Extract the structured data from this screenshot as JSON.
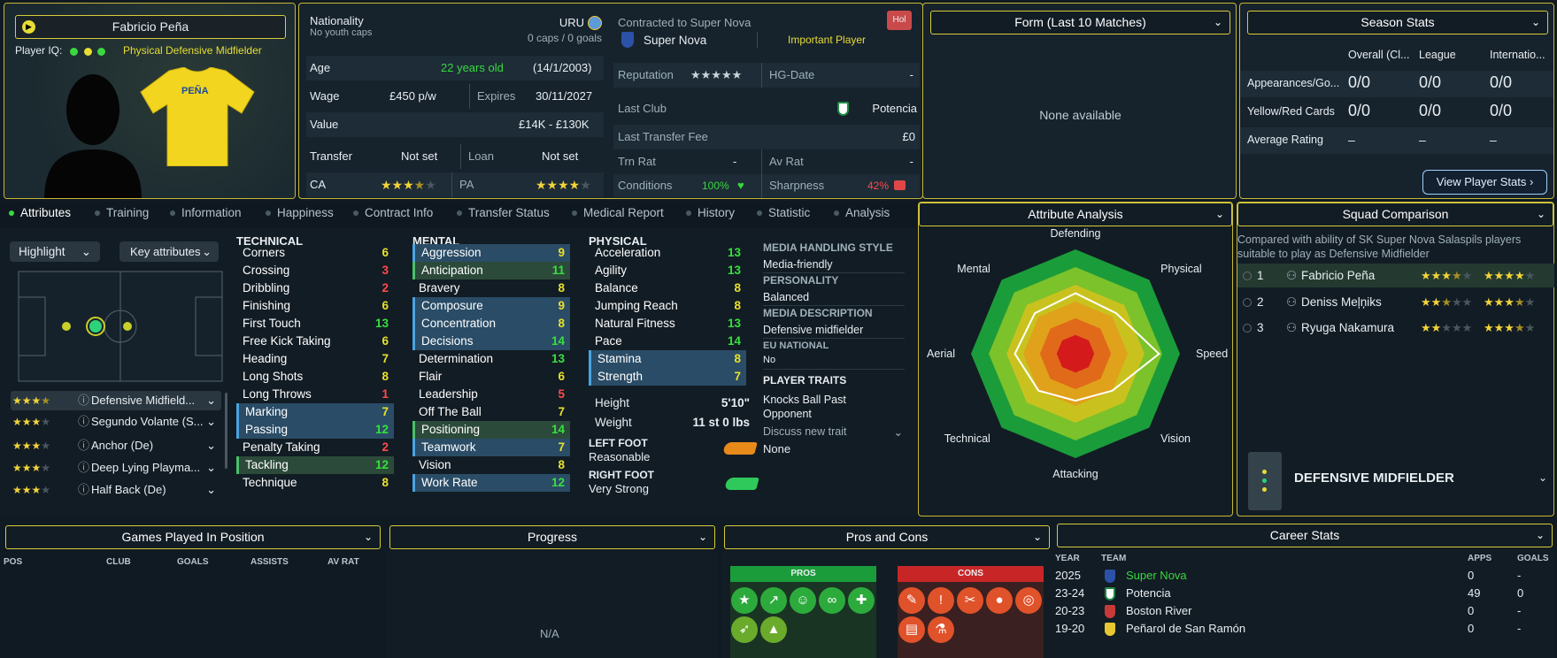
{
  "player": {
    "name": "Fabricio Peña",
    "iq_label": "Player IQ:",
    "position": "Physical Defensive Midfielder",
    "shirt_name": "PEÑA"
  },
  "info": {
    "nationality_label": "Nationality",
    "nationality": "URU",
    "youth_caps": "No youth caps",
    "caps_goals": "0 caps / 0 goals",
    "age_label": "Age",
    "age": "22 years old",
    "dob": "(14/1/2003)",
    "wage_label": "Wage",
    "wage": "£450 p/w",
    "expires_label": "Expires",
    "expires": "30/11/2027",
    "value_label": "Value",
    "value": "£14K - £130K",
    "transfer_label": "Transfer",
    "transfer": "Not set",
    "loan_label": "Loan",
    "loan": "Not set",
    "ca_label": "CA",
    "pa_label": "PA",
    "contract_label": "Contracted to Super Nova",
    "club": "Super Nova",
    "status": "Important Player",
    "hol": "Hol",
    "reputation_label": "Reputation",
    "hg_label": "HG-Date",
    "hg": "-",
    "last_club_label": "Last Club",
    "last_club": "Potencia",
    "fee_label": "Last Transfer Fee",
    "fee": "£0",
    "trn_label": "Trn Rat",
    "trn": "-",
    "av_label": "Av Rat",
    "av": "-",
    "cond_label": "Conditions",
    "cond": "100%",
    "sharp_label": "Sharpness",
    "sharp": "42%"
  },
  "form": {
    "title": "Form (Last 10 Matches)",
    "empty": "None available"
  },
  "season": {
    "title": "Season Stats",
    "cols": [
      "Overall (Cl...",
      "League",
      "Internatio..."
    ],
    "rows": [
      {
        "label": "Appearances/Go...",
        "vals": [
          "0/0",
          "0/0",
          "0/0"
        ]
      },
      {
        "label": "Yellow/Red Cards",
        "vals": [
          "0/0",
          "0/0",
          "0/0"
        ]
      },
      {
        "label": "Average Rating",
        "vals": [
          "–",
          "–",
          "–"
        ]
      }
    ],
    "button": "View Player Stats"
  },
  "tabs": [
    "Attributes",
    "Training",
    "Information",
    "Happiness",
    "Contract Info",
    "Transfer Status",
    "Medical Report",
    "History",
    "Statistic",
    "Analysis"
  ],
  "controls": {
    "highlight": "Highlight",
    "key": "Key attributes"
  },
  "positions": [
    {
      "name": "Defensive Midfield...",
      "stars": 3.5
    },
    {
      "name": "Segundo Volante (S...",
      "stars": 3
    },
    {
      "name": "Anchor (De)",
      "stars": 3
    },
    {
      "name": "Deep Lying Playma...",
      "stars": 3
    },
    {
      "name": "Half Back (De)",
      "stars": 3
    }
  ],
  "technical": {
    "title": "TECHNICAL",
    "items": [
      {
        "n": "Corners",
        "v": "6",
        "c": "y"
      },
      {
        "n": "Crossing",
        "v": "3",
        "c": "r"
      },
      {
        "n": "Dribbling",
        "v": "2",
        "c": "r"
      },
      {
        "n": "Finishing",
        "v": "6",
        "c": "y"
      },
      {
        "n": "First Touch",
        "v": "13",
        "c": "g"
      },
      {
        "n": "Free Kick Taking",
        "v": "6",
        "c": "y"
      },
      {
        "n": "Heading",
        "v": "7",
        "c": "y"
      },
      {
        "n": "Long Shots",
        "v": "8",
        "c": "y"
      },
      {
        "n": "Long Throws",
        "v": "1",
        "c": "r"
      },
      {
        "n": "Marking",
        "v": "7",
        "c": "y",
        "h": 1
      },
      {
        "n": "Passing",
        "v": "12",
        "c": "g",
        "h": 1
      },
      {
        "n": "Penalty Taking",
        "v": "2",
        "c": "r"
      },
      {
        "n": "Tackling",
        "v": "12",
        "c": "g",
        "h": 2
      },
      {
        "n": "Technique",
        "v": "8",
        "c": "y"
      }
    ]
  },
  "mental": {
    "title": "MENTAL",
    "items": [
      {
        "n": "Aggression",
        "v": "9",
        "c": "y",
        "h": 1
      },
      {
        "n": "Anticipation",
        "v": "11",
        "c": "g",
        "h": 2
      },
      {
        "n": "Bravery",
        "v": "8",
        "c": "y"
      },
      {
        "n": "Composure",
        "v": "9",
        "c": "y",
        "h": 1
      },
      {
        "n": "Concentration",
        "v": "8",
        "c": "y",
        "h": 1
      },
      {
        "n": "Decisions",
        "v": "14",
        "c": "g",
        "h": 1
      },
      {
        "n": "Determination",
        "v": "13",
        "c": "g"
      },
      {
        "n": "Flair",
        "v": "6",
        "c": "y"
      },
      {
        "n": "Leadership",
        "v": "5",
        "c": "r"
      },
      {
        "n": "Off The Ball",
        "v": "7",
        "c": "y"
      },
      {
        "n": "Positioning",
        "v": "14",
        "c": "g",
        "h": 2
      },
      {
        "n": "Teamwork",
        "v": "7",
        "c": "y",
        "h": 1
      },
      {
        "n": "Vision",
        "v": "8",
        "c": "y"
      },
      {
        "n": "Work Rate",
        "v": "12",
        "c": "g",
        "h": 1
      }
    ]
  },
  "physical": {
    "title": "PHYSICAL",
    "items": [
      {
        "n": "Acceleration",
        "v": "13",
        "c": "g"
      },
      {
        "n": "Agility",
        "v": "13",
        "c": "g"
      },
      {
        "n": "Balance",
        "v": "8",
        "c": "y"
      },
      {
        "n": "Jumping Reach",
        "v": "8",
        "c": "y"
      },
      {
        "n": "Natural Fitness",
        "v": "13",
        "c": "g"
      },
      {
        "n": "Pace",
        "v": "14",
        "c": "g"
      },
      {
        "n": "Stamina",
        "v": "8",
        "c": "y",
        "h": 1
      },
      {
        "n": "Strength",
        "v": "7",
        "c": "y",
        "h": 1
      }
    ]
  },
  "body": {
    "height_label": "Height",
    "height": "5'10\"",
    "weight_label": "Weight",
    "weight": "11 st 0 lbs",
    "left_label": "LEFT FOOT",
    "left": "Reasonable",
    "right_label": "RIGHT FOOT",
    "right": "Very Strong"
  },
  "profile": {
    "media_title": "MEDIA HANDLING STYLE",
    "media": "Media-friendly",
    "pers_title": "PERSONALITY",
    "pers": "Balanced",
    "desc_title": "MEDIA DESCRIPTION",
    "desc": "Defensive midfielder",
    "eu_title": "EU NATIONAL",
    "eu": "No",
    "traits_title": "PLAYER TRAITS",
    "trait1": "Knocks Ball Past",
    "trait2": "Opponent",
    "discuss": "Discuss new trait",
    "none": "None"
  },
  "analysis": {
    "title": "Attribute Analysis",
    "labels": [
      "Defending",
      "Physical",
      "Speed",
      "Vision",
      "Attacking",
      "Technical",
      "Aerial",
      "Mental"
    ],
    "values": [
      0.58,
      0.55,
      0.8,
      0.5,
      0.45,
      0.5,
      0.58,
      0.55
    ]
  },
  "squad": {
    "title": "Squad Comparison",
    "desc1": "Compared with ability of SK Super Nova Salaspils players",
    "desc2": "suitable to play as Defensive Midfielder",
    "rows": [
      {
        "rank": "1",
        "name": "Fabricio Peña",
        "ca": 3.5,
        "pa": 4
      },
      {
        "rank": "2",
        "name": "Deniss Meļņiks",
        "ca": 2.5,
        "pa": 3.5
      },
      {
        "rank": "3",
        "name": "Ryuga Nakamura",
        "ca": 2,
        "pa": 3.5
      }
    ],
    "role": "DEFENSIVE MIDFIELDER"
  },
  "games": {
    "title": "Games Played In Position",
    "cols": [
      "POS",
      "CLUB",
      "GOALS",
      "ASSISTS",
      "AV RAT"
    ]
  },
  "progress": {
    "title": "Progress",
    "empty": "N/A"
  },
  "proscons": {
    "title": "Pros and Cons",
    "pros": "PROS",
    "cons": "CONS"
  },
  "career": {
    "title": "Career Stats",
    "cols": [
      "YEAR",
      "TEAM",
      "APPS",
      "GOALS"
    ],
    "rows": [
      {
        "y": "2025",
        "t": "Super Nova",
        "a": "0",
        "g": "-"
      },
      {
        "y": "23-24",
        "t": "Potencia",
        "a": "49",
        "g": "0"
      },
      {
        "y": "20-23",
        "t": "Boston River",
        "a": "0",
        "g": "-"
      },
      {
        "y": "19-20",
        "t": "Peñarol de San Ramón",
        "a": "0",
        "g": "-"
      }
    ]
  }
}
